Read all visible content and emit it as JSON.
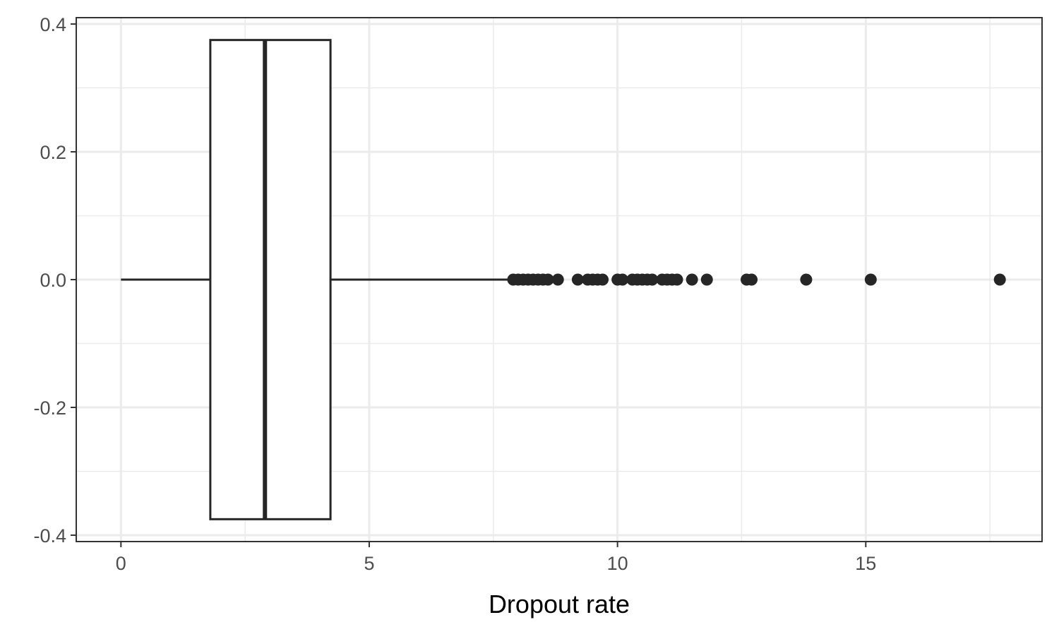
{
  "chart_data": {
    "type": "boxplot",
    "orientation": "horizontal",
    "title": "",
    "xlabel": "Dropout rate",
    "ylabel": "",
    "xlim": [
      -0.9,
      18.55
    ],
    "ylim": [
      -0.41,
      0.41
    ],
    "x_ticks": [
      0,
      5,
      10,
      15
    ],
    "x_tick_labels": [
      "0",
      "5",
      "10",
      "15"
    ],
    "y_ticks": [
      0.4,
      0.2,
      0.0,
      -0.2,
      -0.4
    ],
    "y_tick_labels": [
      "0.4",
      "0.2",
      "0.0",
      "-0.2",
      "-0.4"
    ],
    "grid": true,
    "box": {
      "whisker_low": 0.0,
      "q1": 1.8,
      "median": 2.9,
      "q3": 4.22,
      "whisker_high": 7.85,
      "y_center": 0.0,
      "y_top": 0.375,
      "y_bottom": -0.375
    },
    "outliers": [
      7.9,
      8.0,
      8.1,
      8.2,
      8.3,
      8.4,
      8.5,
      8.6,
      8.8,
      9.2,
      9.4,
      9.5,
      9.6,
      9.7,
      10.0,
      10.1,
      10.3,
      10.4,
      10.5,
      10.6,
      10.7,
      10.9,
      11.0,
      11.1,
      11.2,
      11.5,
      11.8,
      12.6,
      12.7,
      13.8,
      15.1,
      17.7
    ],
    "colors": {
      "box_fill": "#ffffff",
      "box_line": "#262626",
      "points": "#262626",
      "grid": "#ebebeb",
      "panel_border": "#333333"
    }
  }
}
